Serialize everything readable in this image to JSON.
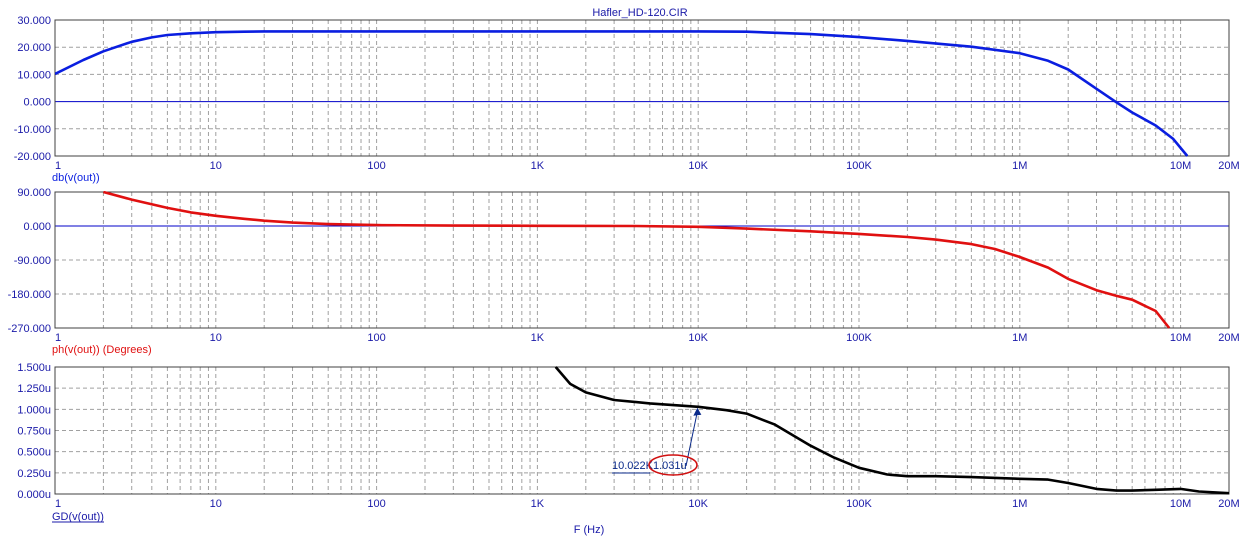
{
  "title": "Hafler_HD-120.CIR",
  "xlabel": "F (Hz)",
  "colors": {
    "axis_text": "#1a1aa8",
    "grid": "#a0a0a0",
    "zero_line": "#0000c8",
    "frame": "#404040",
    "annotation": "#0a2a8a",
    "marker_circle": "#d01010"
  },
  "chart_data": [
    {
      "type": "line",
      "ylabel": "db(v(out))",
      "color": "#0a1ee0",
      "xscale": "log",
      "xlim": [
        1,
        20000000
      ],
      "ylim": [
        -20,
        30
      ],
      "x_ticks": [
        1,
        10,
        100,
        1000,
        10000,
        100000,
        1000000,
        10000000,
        20000000
      ],
      "x_tick_labels": [
        "1",
        "10",
        "100",
        "1K",
        "10K",
        "100K",
        "1M",
        "10M",
        "20M"
      ],
      "y_ticks": [
        30,
        20,
        10,
        0,
        -10,
        -20
      ],
      "y_tick_labels": [
        "30.000",
        "20.000",
        "10.000",
        "0.000",
        "-10.000",
        "-20.000"
      ],
      "grid": true,
      "series": [
        {
          "x": [
            1,
            1.5,
            2,
            3,
            4,
            5,
            7,
            10,
            15,
            20,
            50,
            100,
            1000,
            10000,
            20000,
            50000,
            100000,
            200000,
            500000,
            1000000,
            1500000,
            2000000,
            3000000,
            4000000,
            5000000,
            7000000,
            9000000,
            11000000
          ],
          "y": [
            10.2,
            15.3,
            18.5,
            22.0,
            23.6,
            24.5,
            25.1,
            25.5,
            25.7,
            25.8,
            25.8,
            25.8,
            25.8,
            25.8,
            25.7,
            24.8,
            23.7,
            22.3,
            20.2,
            17.8,
            15.0,
            11.8,
            4.7,
            -0.3,
            -4.0,
            -8.8,
            -13.7,
            -20.0
          ]
        }
      ]
    },
    {
      "type": "line",
      "ylabel": "ph(v(out)) (Degrees)",
      "color": "#e01010",
      "xscale": "log",
      "xlim": [
        1,
        20000000
      ],
      "ylim": [
        -270,
        90
      ],
      "x_ticks": [
        1,
        10,
        100,
        1000,
        10000,
        100000,
        1000000,
        10000000,
        20000000
      ],
      "x_tick_labels": [
        "1",
        "10",
        "100",
        "1K",
        "10K",
        "100K",
        "1M",
        "10M",
        "20M"
      ],
      "y_ticks": [
        90,
        0,
        -90,
        -180,
        -270
      ],
      "y_tick_labels": [
        "90.000",
        "0.000",
        "-90.000",
        "-180.000",
        "-270.000"
      ],
      "grid": true,
      "series": [
        {
          "x": [
            2,
            3,
            5,
            7,
            10,
            15,
            20,
            30,
            50,
            100,
            300,
            1000,
            4000,
            10000,
            20000,
            50000,
            100000,
            200000,
            300000,
            500000,
            700000,
            1000000,
            1500000,
            2000000,
            3000000,
            4000000,
            5000000,
            7000000,
            8500000
          ],
          "y": [
            90,
            70,
            48,
            36,
            27,
            19,
            14,
            9,
            5,
            2.5,
            1,
            0.5,
            0,
            -2,
            -7,
            -14,
            -21,
            -29,
            -36,
            -48,
            -61,
            -82,
            -110,
            -140,
            -170,
            -185,
            -195,
            -225,
            -270
          ]
        }
      ]
    },
    {
      "type": "line",
      "ylabel": "GD(v(out))",
      "color": "#000000",
      "xscale": "log",
      "xlim": [
        1,
        20000000
      ],
      "ylim": [
        0,
        1.5
      ],
      "x_ticks": [
        1,
        10,
        100,
        1000,
        10000,
        100000,
        1000000,
        10000000,
        20000000
      ],
      "x_tick_labels": [
        "1",
        "10",
        "100",
        "1K",
        "10K",
        "100K",
        "1M",
        "10M",
        "20M"
      ],
      "y_ticks": [
        1.5,
        1.25,
        1.0,
        0.75,
        0.5,
        0.25,
        0
      ],
      "y_tick_labels": [
        "1.500u",
        "1.250u",
        "1.000u",
        "0.750u",
        "0.500u",
        "0.250u",
        "0.000u"
      ],
      "grid": true,
      "series": [
        {
          "x": [
            1300,
            1600,
            2000,
            3000,
            5000,
            10000,
            15000,
            20000,
            30000,
            50000,
            70000,
            100000,
            150000,
            200000,
            300000,
            500000,
            1000000,
            1500000,
            2000000,
            3000000,
            4000000,
            5000000,
            7000000,
            10000000,
            13000000,
            20000000
          ],
          "y": [
            1.5,
            1.3,
            1.2,
            1.11,
            1.07,
            1.03,
            0.99,
            0.95,
            0.82,
            0.57,
            0.43,
            0.31,
            0.23,
            0.21,
            0.21,
            0.2,
            0.18,
            0.17,
            0.13,
            0.06,
            0.04,
            0.04,
            0.05,
            0.06,
            0.03,
            0.01
          ]
        }
      ],
      "annotation": {
        "x_label": "10.022K",
        "y_label": "1.031u",
        "x": 10022,
        "y": 1.031
      }
    }
  ]
}
